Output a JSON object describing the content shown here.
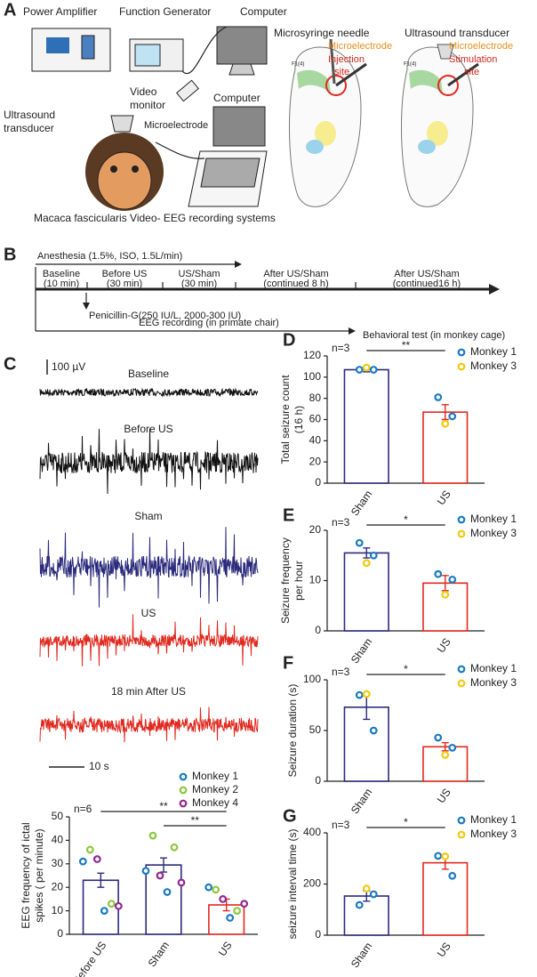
{
  "panel_a": {
    "label": "A",
    "power_amplifier": "Power Amplifier",
    "function_generator": "Function Generator",
    "computer_top": "Computer",
    "video_monitor": [
      "Video",
      "monitor"
    ],
    "computer": "Computer",
    "ultrasound_transducer": [
      "Ultrasound",
      "transducer"
    ],
    "microelectrode": "Microelectrode",
    "caption": "Macaca fascicularis Video- EEG recording systems",
    "left_brain": {
      "needle": "Microsyringe needle",
      "microelectrode": "Microelectrode",
      "site": [
        "Injection",
        "site"
      ],
      "region": "F1(4)"
    },
    "right_brain": {
      "transducer": "Ultrasound transducer",
      "microelectrode": "Microelectrode",
      "site": [
        "Stimulation",
        "site"
      ],
      "region": "F1(4)"
    }
  },
  "panel_b": {
    "label": "B",
    "anesthesia": "Anesthesia (1.5%, ISO, 1.5L/min)",
    "phases": [
      [
        "Baseline",
        "(10 min)"
      ],
      [
        "Before US",
        "(30 min)"
      ],
      [
        "US/Sham",
        "(30 min)"
      ],
      [
        "After US/Sham",
        "(continued 8 h)"
      ],
      [
        "After US/Sham",
        "(continued16 h)"
      ]
    ],
    "penicillin": "Penicillin-G(250 IU/L, 2000-300 IU)",
    "eeg": "EEG recording (in primate chair)",
    "behavior": "Behavioral test (in monkey cage)"
  },
  "panel_c": {
    "label": "C",
    "amplitude_scale": "100 µV",
    "time_scale": "10 s",
    "traces": [
      {
        "name": "Baseline",
        "color": "#111111"
      },
      {
        "name": "Before US",
        "color": "#111111"
      },
      {
        "name": "Sham",
        "color": "#2b2a7c"
      },
      {
        "name": "US",
        "color": "#e0291f"
      },
      {
        "name": "18 min After US",
        "color": "#e0291f"
      }
    ]
  },
  "chart_data": [
    {
      "type": "bar",
      "ylabel": [
        "EEG frequency of ictal",
        "spikes ( per minute)"
      ],
      "categories": [
        "Before US",
        "Sham",
        "US"
      ],
      "values": [
        23,
        29.5,
        12.5
      ],
      "errors": [
        3,
        3,
        2.5
      ],
      "colors": [
        "#2b2a7c",
        "#2b2a7c",
        "#e0291f"
      ],
      "ylim": [
        0,
        50
      ],
      "yticks": [
        0,
        10,
        20,
        30,
        40,
        50
      ],
      "annotations": [
        "n=6",
        "**",
        "**"
      ],
      "series": [
        {
          "name": "Monkey 1",
          "color": "#1a7abf",
          "values": [
            [
              31,
              10
            ],
            [
              27,
              18
            ],
            [
              20,
              7
            ]
          ]
        },
        {
          "name": "Monkey 2",
          "color": "#8dc63f",
          "values": [
            [
              36,
              13
            ],
            [
              42,
              37
            ],
            [
              19,
              10
            ]
          ]
        },
        {
          "name": "Monkey 4",
          "color": "#92278f",
          "values": [
            [
              32,
              12
            ],
            [
              25,
              22
            ],
            [
              15,
              13
            ]
          ]
        }
      ]
    },
    {
      "type": "bar",
      "label": "D",
      "ylabel": [
        "Total seizure count",
        "(16 h)"
      ],
      "categories": [
        "Sham",
        "US"
      ],
      "values": [
        107,
        67
      ],
      "errors": [
        2,
        7
      ],
      "colors": [
        "#2b2a7c",
        "#e0291f"
      ],
      "ylim": [
        0,
        120
      ],
      "yticks": [
        0,
        20,
        40,
        60,
        80,
        100,
        120
      ],
      "annotations": [
        "n=3",
        "**"
      ],
      "series": [
        {
          "name": "Monkey 1",
          "color": "#1a7abf",
          "values": [
            [
              107,
              107
            ],
            [
              81,
              63
            ]
          ]
        },
        {
          "name": "Monkey 3",
          "color": "#f2c80f",
          "values": [
            [
              109
            ],
            [
              56
            ]
          ]
        }
      ]
    },
    {
      "type": "bar",
      "label": "E",
      "ylabel": [
        "Seizure frequency",
        "per hour"
      ],
      "categories": [
        "Sham",
        "US"
      ],
      "values": [
        15.5,
        9.5
      ],
      "errors": [
        1,
        1.5
      ],
      "colors": [
        "#2b2a7c",
        "#e0291f"
      ],
      "ylim": [
        0,
        20
      ],
      "yticks": [
        0,
        10,
        20
      ],
      "annotations": [
        "n=3",
        "*"
      ],
      "series": [
        {
          "name": "Monkey 1",
          "color": "#1a7abf",
          "values": [
            [
              17.5,
              15
            ],
            [
              11.3,
              10.2
            ]
          ]
        },
        {
          "name": "Monkey 3",
          "color": "#f2c80f",
          "values": [
            [
              13.5
            ],
            [
              7.2
            ]
          ]
        }
      ]
    },
    {
      "type": "bar",
      "label": "F",
      "ylabel": [
        "Seizure duration (s)"
      ],
      "categories": [
        "Sham",
        "US"
      ],
      "values": [
        73,
        34
      ],
      "errors": [
        12,
        4
      ],
      "colors": [
        "#2b2a7c",
        "#e0291f"
      ],
      "ylim": [
        0,
        100
      ],
      "yticks": [
        0,
        50,
        100
      ],
      "annotations": [
        "n=3",
        "*"
      ],
      "series": [
        {
          "name": "Monkey 1",
          "color": "#1a7abf",
          "values": [
            [
              85,
              50
            ],
            [
              43,
              33
            ]
          ]
        },
        {
          "name": "Monkey 3",
          "color": "#f2c80f",
          "values": [
            [
              86
            ],
            [
              26
            ]
          ]
        }
      ]
    },
    {
      "type": "bar",
      "label": "G",
      "ylabel": [
        "seizure interval time (s)"
      ],
      "categories": [
        "Sham",
        "US"
      ],
      "values": [
        153,
        283
      ],
      "errors": [
        20,
        25
      ],
      "colors": [
        "#2b2a7c",
        "#e0291f"
      ],
      "ylim": [
        0,
        400
      ],
      "yticks": [
        0,
        200,
        400
      ],
      "annotations": [
        "n=3",
        "*"
      ],
      "series": [
        {
          "name": "Monkey 1",
          "color": "#1a7abf",
          "values": [
            [
              118,
              160
            ],
            [
              310,
              232
            ]
          ]
        },
        {
          "name": "Monkey 3",
          "color": "#f2c80f",
          "values": [
            [
              182
            ],
            [
              308
            ]
          ]
        }
      ]
    }
  ]
}
